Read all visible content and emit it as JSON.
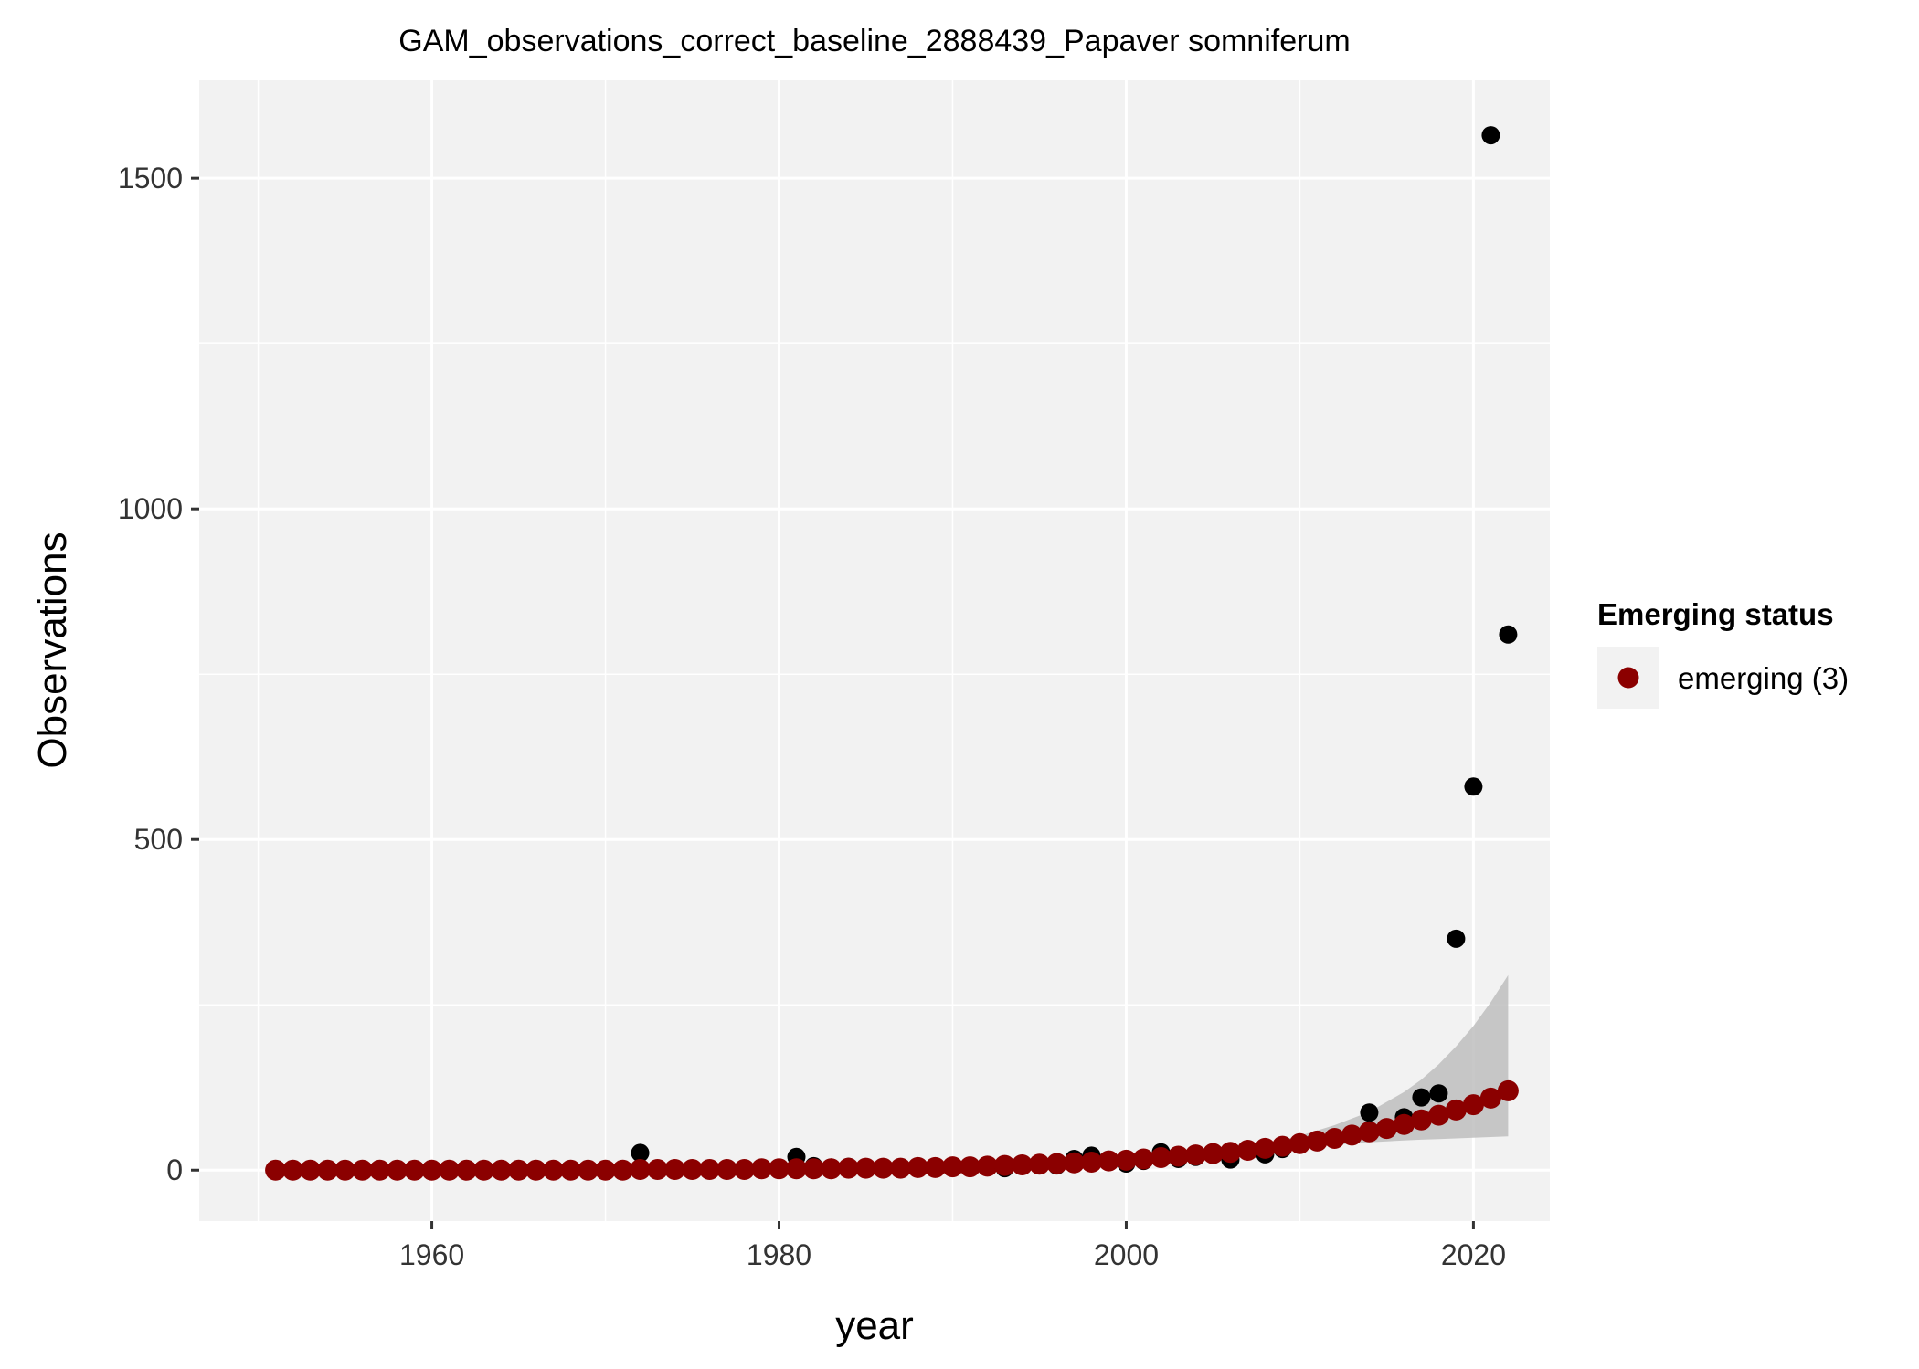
{
  "chart_data": {
    "type": "scatter",
    "title": "GAM_observations_correct_baseline_2888439_Papaver somniferum",
    "xlabel": "year",
    "ylabel": "Observations",
    "xlim": [
      1946.6,
      2024.4
    ],
    "ylim": [
      -77,
      1648
    ],
    "x_ticks": [
      1960,
      1980,
      2000,
      2020
    ],
    "y_ticks": [
      0,
      500,
      1000,
      1500
    ],
    "grid": true,
    "legend": {
      "title": "Emerging status",
      "position": "right",
      "entries": [
        {
          "label": "emerging (3)",
          "color": "#8b0000"
        }
      ]
    },
    "colors": {
      "panel": "#f2f2f2",
      "grid": "#ffffff",
      "observed": "#000000",
      "fitted": "#8b0000",
      "ribbon": "#bebebe"
    },
    "series": [
      {
        "kind": "observed",
        "points": [
          [
            1972,
            26
          ],
          [
            1981,
            20
          ],
          [
            1982,
            6
          ],
          [
            1983,
            4
          ],
          [
            1984,
            5
          ],
          [
            1985,
            3
          ],
          [
            1988,
            4
          ],
          [
            1992,
            5
          ],
          [
            1993,
            3
          ],
          [
            1995,
            8
          ],
          [
            1996,
            7
          ],
          [
            1997,
            17
          ],
          [
            1998,
            22
          ],
          [
            2000,
            10
          ],
          [
            2001,
            14
          ],
          [
            2002,
            27
          ],
          [
            2003,
            17
          ],
          [
            2004,
            20
          ],
          [
            2006,
            16
          ],
          [
            2008,
            24
          ],
          [
            2009,
            32
          ],
          [
            2014,
            87
          ],
          [
            2016,
            80
          ],
          [
            2017,
            110
          ],
          [
            2018,
            116
          ],
          [
            2019,
            350
          ],
          [
            2020,
            580
          ],
          [
            2021,
            1565
          ],
          [
            2022,
            810
          ]
        ]
      },
      {
        "name": "emerging (3)",
        "kind": "fitted",
        "x": [
          1951,
          1952,
          1953,
          1954,
          1955,
          1956,
          1957,
          1958,
          1959,
          1960,
          1961,
          1962,
          1963,
          1964,
          1965,
          1966,
          1967,
          1968,
          1969,
          1970,
          1971,
          1972,
          1973,
          1974,
          1975,
          1976,
          1977,
          1978,
          1979,
          1980,
          1981,
          1982,
          1983,
          1984,
          1985,
          1986,
          1987,
          1988,
          1989,
          1990,
          1991,
          1992,
          1993,
          1994,
          1995,
          1996,
          1997,
          1998,
          1999,
          2000,
          2001,
          2002,
          2003,
          2004,
          2005,
          2006,
          2007,
          2008,
          2009,
          2010,
          2011,
          2012,
          2013,
          2014,
          2015,
          2016,
          2017,
          2018,
          2019,
          2020,
          2021,
          2022
        ],
        "y": [
          0,
          0,
          0,
          0,
          0,
          0,
          0,
          0,
          0,
          0,
          0,
          0,
          0,
          0,
          0,
          0,
          0,
          0,
          0,
          0,
          0,
          1,
          1,
          1,
          1,
          1,
          1,
          1,
          2,
          2,
          2,
          2,
          2,
          3,
          3,
          3,
          3,
          4,
          4,
          5,
          5,
          6,
          7,
          8,
          9,
          10,
          11,
          12,
          14,
          15,
          17,
          19,
          21,
          23,
          25,
          27,
          30,
          33,
          36,
          40,
          44,
          48,
          53,
          58,
          63,
          69,
          76,
          83,
          91,
          99,
          109,
          120
        ]
      }
    ],
    "ribbon": {
      "x": [
        2005,
        2008,
        2010,
        2012,
        2014,
        2016,
        2017,
        2018,
        2019,
        2020,
        2021,
        2022
      ],
      "lower": [
        22,
        28,
        34,
        38,
        42,
        45,
        46,
        47,
        48,
        49,
        50,
        51
      ],
      "upper": [
        29,
        40,
        52,
        68,
        88,
        118,
        137,
        160,
        187,
        218,
        254,
        295
      ]
    }
  }
}
